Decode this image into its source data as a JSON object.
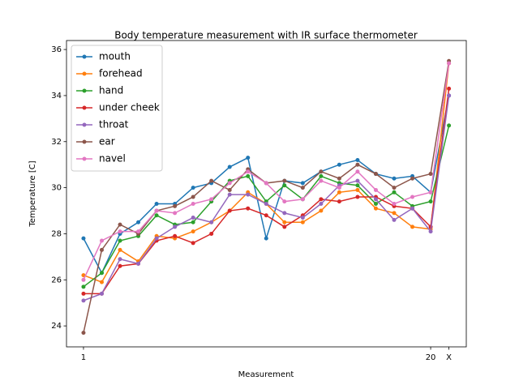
{
  "chart_data": {
    "type": "line",
    "title": "Body temperature measurement with IR surface thermometer",
    "x_label": "Measurement",
    "y_label": "Temperature [C]",
    "x": [
      1,
      2,
      3,
      4,
      5,
      6,
      7,
      8,
      9,
      10,
      11,
      12,
      13,
      14,
      15,
      16,
      17,
      18,
      19,
      20,
      21
    ],
    "series": [
      {
        "name": "mouth",
        "color": "#1f77b4",
        "values": [
          27.8,
          26.3,
          28.0,
          28.5,
          29.3,
          29.3,
          30.0,
          30.2,
          30.9,
          31.3,
          27.8,
          30.3,
          30.2,
          30.7,
          31.0,
          31.2,
          30.6,
          30.4,
          30.5,
          29.8,
          34.0
        ]
      },
      {
        "name": "forehead",
        "color": "#ff7f0e",
        "values": [
          26.2,
          25.9,
          27.3,
          26.8,
          27.9,
          27.8,
          28.1,
          28.5,
          29.0,
          29.8,
          29.3,
          28.5,
          28.5,
          29.0,
          29.8,
          29.9,
          29.1,
          28.9,
          28.3,
          28.2,
          35.4
        ]
      },
      {
        "name": "hand",
        "color": "#2ca02c",
        "values": [
          25.7,
          26.3,
          27.7,
          27.9,
          28.8,
          28.4,
          28.5,
          29.4,
          30.3,
          30.5,
          29.4,
          30.1,
          29.5,
          30.5,
          30.2,
          30.1,
          29.3,
          29.8,
          29.2,
          29.4,
          32.7
        ]
      },
      {
        "name": "under cheek",
        "color": "#d62728",
        "values": [
          25.4,
          25.4,
          26.6,
          26.7,
          27.7,
          27.9,
          27.6,
          28.0,
          29.0,
          29.1,
          28.8,
          28.3,
          28.8,
          29.5,
          29.4,
          29.6,
          29.6,
          29.2,
          29.1,
          28.3,
          34.3
        ]
      },
      {
        "name": "throat",
        "color": "#9467bd",
        "values": [
          25.1,
          25.4,
          26.9,
          26.7,
          27.8,
          28.3,
          28.7,
          28.5,
          29.7,
          29.7,
          29.3,
          28.9,
          28.7,
          29.3,
          30.1,
          30.3,
          29.5,
          28.6,
          29.1,
          28.1,
          34.0
        ]
      },
      {
        "name": "ear",
        "color": "#8c564b",
        "values": [
          23.7,
          27.3,
          28.4,
          28.0,
          29.0,
          29.2,
          29.6,
          30.3,
          29.9,
          30.8,
          30.2,
          30.3,
          30.0,
          30.7,
          30.4,
          31.0,
          30.6,
          30.0,
          30.4,
          30.6,
          35.5
        ]
      },
      {
        "name": "navel",
        "color": "#e377c2",
        "values": [
          26.0,
          27.7,
          28.1,
          28.1,
          29.0,
          28.9,
          29.3,
          29.5,
          30.2,
          30.7,
          30.2,
          29.4,
          29.5,
          30.3,
          30.0,
          30.7,
          29.9,
          29.3,
          29.6,
          29.8,
          35.4
        ]
      }
    ],
    "xlim": [
      0.07,
      21.95
    ],
    "xticks": [
      1,
      20,
      {
        "value": 21,
        "label": "X"
      }
    ],
    "ylim": [
      23.09,
      36.39
    ],
    "yticks": [
      24,
      26,
      28,
      30,
      32,
      34,
      36
    ],
    "legend": "upper left",
    "grid": false
  }
}
